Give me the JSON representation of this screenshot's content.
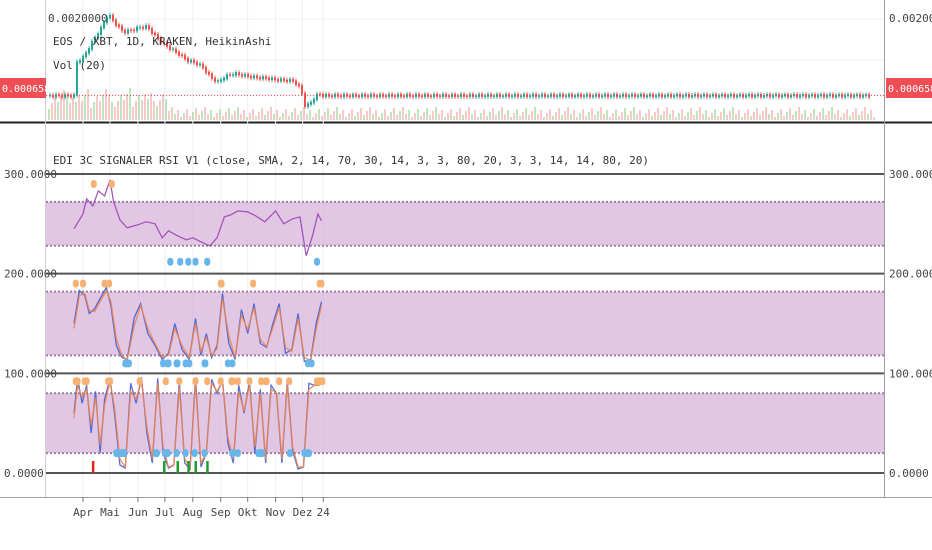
{
  "chart_data": [
    {
      "panel": "price",
      "type": "candlestick",
      "header": "EOS / XBT, 1D, KRAKEN, HeikinAshi",
      "volume_label": "Vol (20)",
      "y_tick_labels": [
        "0.0020000"
      ],
      "y_ticks": [
        0.002
      ],
      "last_price_label": "0.0006588",
      "last_price": 0.0006588,
      "series": [
        {
          "name": "close",
          "x": [
            "Mar 22",
            "Apr 1",
            "Apr 10",
            "Apr 20",
            "Apr 28",
            "May 5",
            "May 15",
            "May 25",
            "Jun 1",
            "Jun 10",
            "Jun 20",
            "Jun 28",
            "Jul 5",
            "Jul 15",
            "Jul 25",
            "Aug 1",
            "Aug 10",
            "Aug 20",
            "Aug 28",
            "Sep 5",
            "Sep 15",
            "Sep 25",
            "Oct 1",
            "Oct 10",
            "Oct 20",
            "Nov 1",
            "Nov 10",
            "Nov 20",
            "Nov 28",
            "Dec 3",
            "Dec 8",
            "Dec 12",
            "Dec 18",
            "Dec 22"
          ],
          "values": [
            0.00122,
            0.00135,
            0.0016,
            0.00185,
            0.0021,
            0.00195,
            0.00178,
            0.00182,
            0.00186,
            0.00188,
            0.0017,
            0.00158,
            0.0015,
            0.0014,
            0.00128,
            0.00125,
            0.00118,
            0.00098,
            0.0009,
            0.001,
            0.00105,
            0.00102,
            0.001,
            0.00098,
            0.00097,
            0.00094,
            0.00093,
            0.00092,
            0.00078,
            0.00046,
            0.00052,
            0.0006,
            0.0007,
            0.00066
          ]
        }
      ]
    },
    {
      "panel": "indicator",
      "type": "line",
      "header": "EDI 3C SIGNALER RSI V1 (close, SMA, 2, 14, 70, 30, 14, 3, 3, 80, 20, 3, 3, 14, 14, 80, 20)",
      "y_tick_labels": [
        "300.0000",
        "200.0000",
        "100.0000",
        "0.0000"
      ],
      "y_ticks": [
        300,
        200,
        100,
        0
      ],
      "ylim": [
        -10,
        310
      ],
      "bands": [
        {
          "name": "band-top",
          "from": 228,
          "to": 272
        },
        {
          "name": "band-mid",
          "from": 118,
          "to": 182
        },
        {
          "name": "band-low",
          "from": 20,
          "to": 80
        }
      ],
      "series": [
        {
          "name": "rsi",
          "color": "#9c47b5",
          "x": [
            "Mar 22",
            "Apr 1",
            "Apr 5",
            "Apr 12",
            "Apr 18",
            "Apr 25",
            "May 1",
            "May 5",
            "May 12",
            "May 20",
            "Jun 1",
            "Jun 10",
            "Jun 20",
            "Jun 28",
            "Jul 5",
            "Jul 15",
            "Jul 25",
            "Aug 1",
            "Aug 10",
            "Aug 20",
            "Aug 28",
            "Sep 5",
            "Sep 12",
            "Sep 20",
            "Oct 1",
            "Oct 10",
            "Oct 20",
            "Nov 1",
            "Nov 10",
            "Nov 20",
            "Nov 28",
            "Dec 5",
            "Dec 12",
            "Dec 18",
            "Dec 22"
          ],
          "values": [
            245,
            260,
            275,
            268,
            283,
            278,
            294,
            272,
            254,
            246,
            249,
            252,
            250,
            236,
            243,
            238,
            234,
            236,
            232,
            228,
            236,
            257,
            259,
            263,
            262,
            258,
            252,
            263,
            250,
            255,
            257,
            218,
            238,
            260,
            253
          ]
        },
        {
          "name": "stoch-rsi-k",
          "color": "#3f5fd6",
          "x": [
            "Mar 22",
            "Mar 28",
            "Apr 3",
            "Apr 8",
            "Apr 14",
            "Apr 20",
            "Apr 27",
            "May 2",
            "May 8",
            "May 14",
            "May 20",
            "May 28",
            "Jun 4",
            "Jun 12",
            "Jun 20",
            "Jun 28",
            "Jul 5",
            "Jul 12",
            "Jul 20",
            "Jul 28",
            "Aug 4",
            "Aug 10",
            "Aug 16",
            "Aug 22",
            "Aug 28",
            "Sep 3",
            "Sep 10",
            "Sep 17",
            "Sep 24",
            "Oct 1",
            "Oct 8",
            "Oct 15",
            "Oct 22",
            "Oct 29",
            "Nov 5",
            "Nov 12",
            "Nov 19",
            "Nov 26",
            "Dec 3",
            "Dec 10",
            "Dec 16",
            "Dec 22"
          ],
          "values": [
            150,
            183,
            178,
            160,
            165,
            175,
            186,
            168,
            128,
            116,
            114,
            156,
            170,
            140,
            128,
            114,
            120,
            150,
            124,
            114,
            155,
            118,
            140,
            116,
            128,
            180,
            130,
            114,
            164,
            140,
            170,
            130,
            126,
            150,
            170,
            120,
            124,
            160,
            112,
            114,
            150,
            172
          ]
        },
        {
          "name": "stoch-rsi-d",
          "color": "#f0834a",
          "x": [
            "Mar 22",
            "Mar 28",
            "Apr 3",
            "Apr 8",
            "Apr 14",
            "Apr 20",
            "Apr 27",
            "May 2",
            "May 8",
            "May 14",
            "May 20",
            "May 28",
            "Jun 4",
            "Jun 12",
            "Jun 20",
            "Jun 28",
            "Jul 5",
            "Jul 12",
            "Jul 20",
            "Jul 28",
            "Aug 4",
            "Aug 10",
            "Aug 16",
            "Aug 22",
            "Aug 28",
            "Sep 3",
            "Sep 10",
            "Sep 17",
            "Sep 24",
            "Oct 1",
            "Oct 8",
            "Oct 15",
            "Oct 22",
            "Oct 29",
            "Nov 5",
            "Nov 12",
            "Nov 19",
            "Nov 26",
            "Dec 3",
            "Dec 10",
            "Dec 16",
            "Dec 22"
          ],
          "values": [
            145,
            178,
            180,
            163,
            162,
            172,
            183,
            172,
            135,
            118,
            113,
            148,
            168,
            145,
            130,
            116,
            118,
            145,
            128,
            116,
            150,
            122,
            136,
            118,
            125,
            175,
            138,
            116,
            158,
            144,
            166,
            134,
            127,
            146,
            166,
            126,
            122,
            155,
            116,
            113,
            144,
            168
          ]
        },
        {
          "name": "stoch-k",
          "color": "#3f5fd6",
          "x": [
            "Mar 22",
            "Mar 26",
            "Mar 31",
            "Apr 5",
            "Apr 10",
            "Apr 15",
            "Apr 20",
            "Apr 25",
            "May 1",
            "May 6",
            "May 12",
            "May 18",
            "May 24",
            "May 30",
            "Jun 5",
            "Jun 11",
            "Jun 17",
            "Jun 23",
            "Jun 29",
            "Jul 5",
            "Jul 11",
            "Jul 17",
            "Jul 23",
            "Jul 29",
            "Aug 4",
            "Aug 10",
            "Aug 16",
            "Aug 22",
            "Aug 28",
            "Sep 3",
            "Sep 9",
            "Sep 15",
            "Sep 21",
            "Sep 27",
            "Oct 3",
            "Oct 9",
            "Oct 15",
            "Oct 21",
            "Oct 27",
            "Nov 2",
            "Nov 8",
            "Nov 14",
            "Nov 20",
            "Nov 26",
            "Dec 2",
            "Dec 8",
            "Dec 14",
            "Dec 20"
          ],
          "values": [
            60,
            95,
            70,
            88,
            40,
            82,
            20,
            74,
            95,
            60,
            8,
            5,
            90,
            70,
            96,
            40,
            10,
            95,
            20,
            5,
            8,
            92,
            10,
            4,
            96,
            6,
            20,
            94,
            80,
            94,
            30,
            10,
            88,
            60,
            92,
            20,
            84,
            10,
            88,
            80,
            10,
            92,
            22,
            4,
            6,
            90,
            88,
            90
          ]
        },
        {
          "name": "stoch-d",
          "color": "#f0834a",
          "x": [
            "Mar 22",
            "Mar 26",
            "Mar 31",
            "Apr 5",
            "Apr 10",
            "Apr 15",
            "Apr 20",
            "Apr 25",
            "May 1",
            "May 6",
            "May 12",
            "May 18",
            "May 24",
            "May 30",
            "Jun 5",
            "Jun 11",
            "Jun 17",
            "Jun 23",
            "Jun 29",
            "Jul 5",
            "Jul 11",
            "Jul 17",
            "Jul 23",
            "Jul 29",
            "Aug 4",
            "Aug 10",
            "Aug 16",
            "Aug 22",
            "Aug 28",
            "Sep 3",
            "Sep 9",
            "Sep 15",
            "Sep 21",
            "Sep 27",
            "Oct 3",
            "Oct 9",
            "Oct 15",
            "Oct 21",
            "Oct 27",
            "Nov 2",
            "Nov 8",
            "Nov 14",
            "Nov 20",
            "Nov 26",
            "Dec 2",
            "Dec 8",
            "Dec 14",
            "Dec 20"
          ],
          "values": [
            55,
            88,
            76,
            84,
            48,
            76,
            28,
            68,
            92,
            66,
            14,
            6,
            82,
            74,
            92,
            46,
            14,
            90,
            26,
            6,
            8,
            86,
            14,
            6,
            90,
            10,
            20,
            90,
            82,
            92,
            36,
            14,
            82,
            62,
            88,
            26,
            80,
            14,
            84,
            80,
            14,
            88,
            26,
            6,
            6,
            84,
            88,
            88
          ]
        }
      ],
      "overbought_dots": [
        {
          "x": "Apr 13",
          "y": 290
        },
        {
          "x": "May 3",
          "y": 290
        },
        {
          "x": "Mar 24",
          "y": 190
        },
        {
          "x": "Apr 1",
          "y": 190
        },
        {
          "x": "Apr 25",
          "y": 190
        },
        {
          "x": "Apr 30",
          "y": 190
        },
        {
          "x": "Sep 1",
          "y": 190
        },
        {
          "x": "Sep 2",
          "y": 190
        },
        {
          "x": "Oct 7",
          "y": 190
        },
        {
          "x": "Dec 20",
          "y": 190
        },
        {
          "x": "Dec 22",
          "y": 190
        },
        {
          "x": "Mar 24",
          "y": 92
        },
        {
          "x": "Mar 26",
          "y": 92
        },
        {
          "x": "Apr 3",
          "y": 92
        },
        {
          "x": "Apr 5",
          "y": 92
        },
        {
          "x": "Apr 29",
          "y": 92
        },
        {
          "x": "May 1",
          "y": 92
        },
        {
          "x": "Jun 3",
          "y": 92
        },
        {
          "x": "Jul 2",
          "y": 92
        },
        {
          "x": "Jul 17",
          "y": 92
        },
        {
          "x": "Aug 4",
          "y": 92
        },
        {
          "x": "Aug 17",
          "y": 92
        },
        {
          "x": "Sep 1",
          "y": 92
        },
        {
          "x": "Sep 13",
          "y": 92
        },
        {
          "x": "Sep 14",
          "y": 92
        },
        {
          "x": "Sep 20",
          "y": 92
        },
        {
          "x": "Oct 3",
          "y": 92
        },
        {
          "x": "Oct 16",
          "y": 92
        },
        {
          "x": "Oct 21",
          "y": 92
        },
        {
          "x": "Oct 22",
          "y": 92
        },
        {
          "x": "Nov 5",
          "y": 92
        },
        {
          "x": "Nov 16",
          "y": 92
        },
        {
          "x": "Dec 17",
          "y": 92
        },
        {
          "x": "Dec 20",
          "y": 92
        },
        {
          "x": "Dec 23",
          "y": 92
        }
      ],
      "oversold_dots": [
        {
          "x": "Jul 7",
          "y": 212
        },
        {
          "x": "Jul 18",
          "y": 212
        },
        {
          "x": "Jul 27",
          "y": 212
        },
        {
          "x": "Aug 4",
          "y": 212
        },
        {
          "x": "Aug 17",
          "y": 212
        },
        {
          "x": "Dec 17",
          "y": 212
        },
        {
          "x": "May 18",
          "y": 110
        },
        {
          "x": "May 19",
          "y": 110
        },
        {
          "x": "May 22",
          "y": 110
        },
        {
          "x": "Jun 29",
          "y": 110
        },
        {
          "x": "Jul 4",
          "y": 110
        },
        {
          "x": "Jul 5",
          "y": 110
        },
        {
          "x": "Jul 14",
          "y": 110
        },
        {
          "x": "Jul 15",
          "y": 110
        },
        {
          "x": "Jul 24",
          "y": 110
        },
        {
          "x": "Jul 28",
          "y": 110
        },
        {
          "x": "Aug 14",
          "y": 110
        },
        {
          "x": "Aug 15",
          "y": 110
        },
        {
          "x": "Sep 9",
          "y": 110
        },
        {
          "x": "Sep 14",
          "y": 110
        },
        {
          "x": "Dec 7",
          "y": 110
        },
        {
          "x": "Dec 11",
          "y": 110
        },
        {
          "x": "May 8",
          "y": 20
        },
        {
          "x": "May 9",
          "y": 20
        },
        {
          "x": "May 13",
          "y": 20
        },
        {
          "x": "May 15",
          "y": 20
        },
        {
          "x": "May 17",
          "y": 20
        },
        {
          "x": "Jun 21",
          "y": 20
        },
        {
          "x": "Jun 22",
          "y": 20
        },
        {
          "x": "Jul 1",
          "y": 20
        },
        {
          "x": "Jul 3",
          "y": 20
        },
        {
          "x": "Jul 4",
          "y": 20
        },
        {
          "x": "Jul 14",
          "y": 20
        },
        {
          "x": "Jul 24",
          "y": 20
        },
        {
          "x": "Aug 3",
          "y": 20
        },
        {
          "x": "Aug 14",
          "y": 20
        },
        {
          "x": "Sep 14",
          "y": 20
        },
        {
          "x": "Sep 20",
          "y": 20
        },
        {
          "x": "Oct 13",
          "y": 20
        },
        {
          "x": "Oct 15",
          "y": 20
        },
        {
          "x": "Oct 17",
          "y": 20
        },
        {
          "x": "Nov 17",
          "y": 20
        },
        {
          "x": "Dec 3",
          "y": 20
        },
        {
          "x": "Dec 6",
          "y": 20
        },
        {
          "x": "Dec 8",
          "y": 20
        }
      ],
      "buy_signals": [
        "Jun 30",
        "Jul 15",
        "Jul 27",
        "Aug 4",
        "Aug 17"
      ],
      "sell_signals": [
        "Apr 12"
      ]
    }
  ],
  "x_axis": {
    "ticks": [
      {
        "label": "Apr",
        "date": "Apr 1"
      },
      {
        "label": "Mai",
        "date": "May 1"
      },
      {
        "label": "Jun",
        "date": "Jun 1"
      },
      {
        "label": "Jul",
        "date": "Jul 1"
      },
      {
        "label": "Aug",
        "date": "Aug 1"
      },
      {
        "label": "Sep",
        "date": "Sep 1"
      },
      {
        "label": "Okt",
        "date": "Oct 1"
      },
      {
        "label": "Nov",
        "date": "Nov 1"
      },
      {
        "label": "Dez",
        "date": "Dec 1"
      },
      {
        "label": "24",
        "date": "Dec 24"
      }
    ]
  },
  "colors": {
    "up": "#26a69a",
    "down": "#ef5350",
    "band_fill": "#d8b4dc",
    "last_price_bg": "#ee4f55",
    "buy": "#1f9d2e",
    "sell": "#e0271d",
    "overbought": "#f7b273",
    "oversold": "#66b6ec"
  }
}
